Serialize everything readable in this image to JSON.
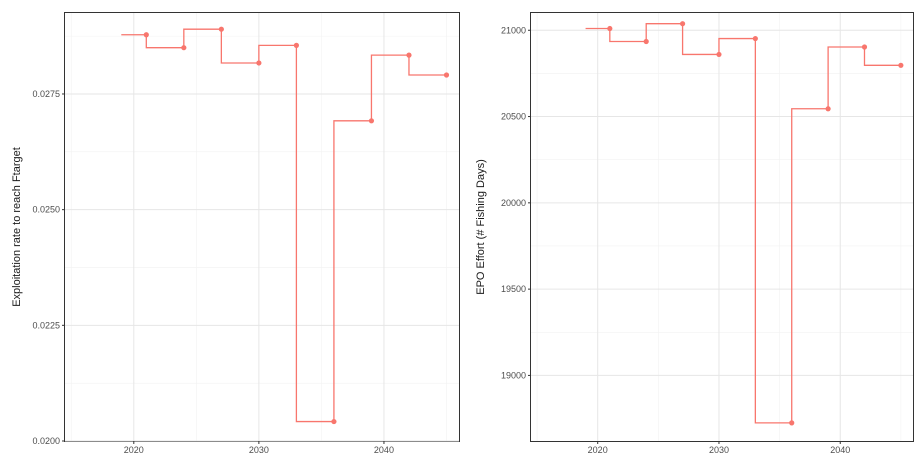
{
  "chart_data": [
    {
      "type": "line",
      "title": "",
      "xlabel": "",
      "ylabel": "Exploitation rate to reach Ftarget",
      "xlim": [
        2014.5,
        2046
      ],
      "ylim": [
        0.02,
        0.02925
      ],
      "x_ticks": [
        2020,
        2030,
        2040
      ],
      "y_ticks": [
        0.02,
        0.0225,
        0.025,
        0.0275
      ],
      "y_tick_labels": [
        "0.0200",
        "0.0225",
        "0.0250",
        "0.0275"
      ],
      "grid": true,
      "line_color": "#F8766D",
      "line_shape": "step",
      "step_years": [
        2019,
        2022,
        2025,
        2028,
        2031,
        2034,
        2037,
        2040,
        2043,
        2045
      ],
      "step_values": [
        0.02878,
        0.0285,
        0.0289,
        0.02817,
        0.02855,
        0.02042,
        0.02692,
        0.02834,
        0.02791,
        0.02791
      ],
      "point_years": [
        2021,
        2024,
        2027,
        2030,
        2033,
        2036,
        2039,
        2042,
        2045
      ],
      "point_values": [
        0.02878,
        0.0285,
        0.0289,
        0.02817,
        0.02855,
        0.02042,
        0.02692,
        0.02834,
        0.02791
      ]
    },
    {
      "type": "line",
      "title": "",
      "xlabel": "",
      "ylabel": "EPO Effort (# Fishing Days)",
      "xlim": [
        2014.5,
        2046
      ],
      "ylim": [
        18620,
        21100
      ],
      "x_ticks": [
        2020,
        2030,
        2040
      ],
      "y_ticks": [
        19000,
        19500,
        20000,
        20500,
        21000
      ],
      "y_tick_labels": [
        "19000",
        "19500",
        "20000",
        "20500",
        "21000"
      ],
      "grid": true,
      "line_color": "#F8766D",
      "line_shape": "step",
      "step_years": [
        2019,
        2022,
        2025,
        2028,
        2031,
        2034,
        2037,
        2040,
        2043,
        2045
      ],
      "step_values": [
        21010,
        20935,
        21038,
        20860,
        20952,
        18725,
        20545,
        20903,
        20797,
        20797
      ],
      "point_years": [
        2021,
        2024,
        2027,
        2030,
        2033,
        2036,
        2039,
        2042,
        2045
      ],
      "point_values": [
        21010,
        20935,
        21038,
        20860,
        20952,
        18725,
        20545,
        20903,
        20797
      ]
    }
  ]
}
